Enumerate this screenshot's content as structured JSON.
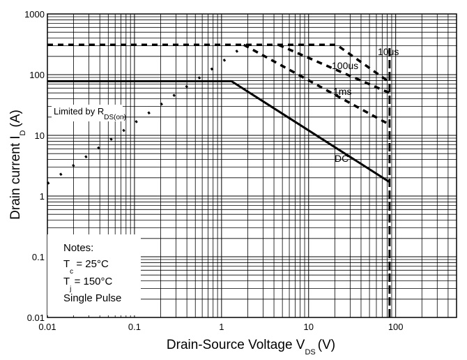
{
  "chart_data": {
    "type": "line",
    "xscale": "log",
    "yscale": "log",
    "xlim": [
      0.01,
      500
    ],
    "ylim": [
      0.01,
      1000
    ],
    "grid": true,
    "xlabel": {
      "main": "Drain-Source Voltage V",
      "sub": "DS",
      "unit": "(V)"
    },
    "ylabel": {
      "main": "Drain current I",
      "sub": "D",
      "unit": "(A)"
    },
    "xticks": [
      {
        "value": 0.01,
        "label": "0.01"
      },
      {
        "value": 0.1,
        "label": "0.1"
      },
      {
        "value": 1,
        "label": "1"
      },
      {
        "value": 10,
        "label": "10"
      },
      {
        "value": 100,
        "label": "100"
      }
    ],
    "yticks": [
      {
        "value": 0.01,
        "label": "0.01"
      },
      {
        "value": 0.1,
        "label": "0.1"
      },
      {
        "value": 1,
        "label": "1"
      },
      {
        "value": 10,
        "label": "10"
      },
      {
        "value": 100,
        "label": "100"
      },
      {
        "value": 1000,
        "label": "1000"
      }
    ],
    "series": [
      {
        "name": "Limited by R",
        "name_sub": "DS(on)",
        "style": "dotted",
        "x": [
          0.01,
          0.1,
          1,
          1.9
        ],
        "y": [
          1.6,
          16,
          160,
          310
        ]
      },
      {
        "name": "10us",
        "style": "dashed",
        "x": [
          0.01,
          21,
          85
        ],
        "y": [
          310,
          310,
          75
        ]
      },
      {
        "name": "100us",
        "style": "dashed",
        "x": [
          4.5,
          85
        ],
        "y": [
          310,
          50
        ]
      },
      {
        "name": "1ms",
        "style": "dashed",
        "x": [
          1.8,
          85
        ],
        "y": [
          310,
          15
        ]
      },
      {
        "name": "DC",
        "style": "solid",
        "x": [
          0.01,
          1.3,
          85
        ],
        "y": [
          78,
          78,
          1.7
        ]
      },
      {
        "name": "",
        "style": "dashed-vertical",
        "x": [
          85,
          85
        ],
        "y": [
          0.01,
          310
        ]
      }
    ],
    "notes": {
      "title": "Notes:",
      "lines": [
        {
          "main": "T",
          "sub": "c",
          "rest": " = 25°C"
        },
        {
          "main": "T",
          "sub": "j",
          "rest": " = 150°C"
        },
        {
          "main": "Single Pulse",
          "sub": "",
          "rest": ""
        }
      ]
    },
    "colors": {
      "line": "#000000",
      "grid": "#000000",
      "background": "#ffffff"
    }
  }
}
